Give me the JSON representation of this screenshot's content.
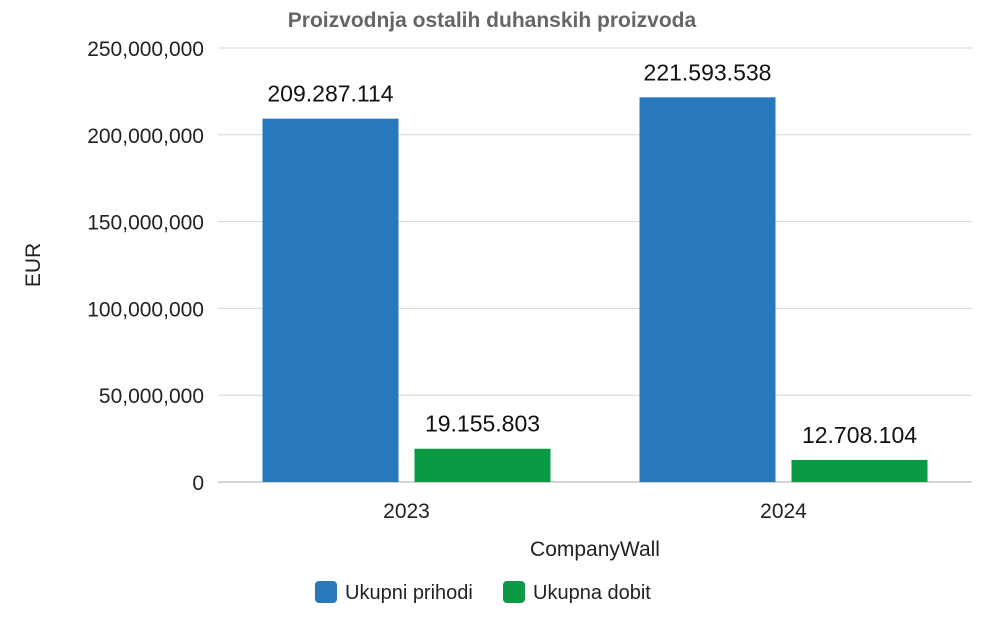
{
  "chart_data": {
    "type": "bar",
    "title": "Proizvodnja ostalih duhanskih proizvoda",
    "xlabel": "CompanyWall",
    "ylabel": "EUR",
    "categories": [
      "2023",
      "2024"
    ],
    "ylim": [
      0,
      250000000
    ],
    "yticks": [
      0,
      50000000,
      100000000,
      150000000,
      200000000,
      250000000
    ],
    "ytick_labels": [
      "0",
      "50,000,000",
      "100,000,000",
      "150,000,000",
      "200,000,000",
      "250,000,000"
    ],
    "grid": true,
    "legend_position": "bottom",
    "series": [
      {
        "name": "Ukupni prihodi",
        "color": "#2878bd",
        "values": [
          209287114,
          221593538
        ],
        "labels": [
          "209.287.114",
          "221.593.538"
        ]
      },
      {
        "name": "Ukupna dobit",
        "color": "#0a9a44",
        "values": [
          19155803,
          12708104
        ],
        "labels": [
          "19.155.803",
          "12.708.104"
        ]
      }
    ]
  }
}
